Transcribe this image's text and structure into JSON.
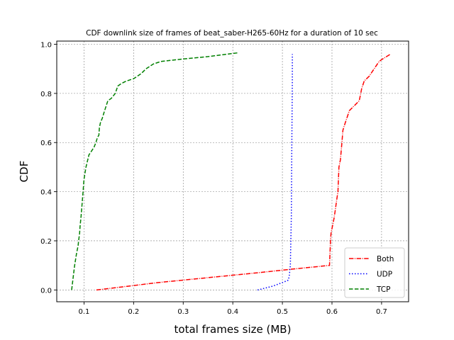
{
  "chart_data": {
    "type": "line",
    "title": "CDF downlink size of frames of beat_saber-H265-60Hz for a duration of 10 sec",
    "xlabel": "total frames size (MB)",
    "ylabel": "CDF",
    "xlim": [
      0.045,
      0.7545
    ],
    "ylim": [
      -0.048,
      1.013
    ],
    "xticks": [
      0.1,
      0.2,
      0.3,
      0.4,
      0.5,
      0.6,
      0.7
    ],
    "xtick_labels": [
      "0.1",
      "0.2",
      "0.3",
      "0.4",
      "0.5",
      "0.6",
      "0.7"
    ],
    "yticks": [
      0.0,
      0.2,
      0.4,
      0.6,
      0.8,
      1.0
    ],
    "ytick_labels": [
      "0.0",
      "0.2",
      "0.4",
      "0.6",
      "0.8",
      "1.0"
    ],
    "grid": true,
    "legend_position": "lower-right",
    "series": [
      {
        "name": "Both",
        "color": "#ff0000",
        "style": "dashdot",
        "x": [
          0.125,
          0.25,
          0.35,
          0.45,
          0.52,
          0.595,
          0.597,
          0.598,
          0.601,
          0.604,
          0.607,
          0.609,
          0.612,
          0.613,
          0.614,
          0.617,
          0.62,
          0.622,
          0.625,
          0.63,
          0.635,
          0.645,
          0.655,
          0.658,
          0.66,
          0.665,
          0.675,
          0.685,
          0.695,
          0.702,
          0.718
        ],
        "y": [
          0.0,
          0.03,
          0.05,
          0.07,
          0.085,
          0.1,
          0.2,
          0.23,
          0.26,
          0.29,
          0.33,
          0.36,
          0.4,
          0.45,
          0.5,
          0.53,
          0.6,
          0.65,
          0.67,
          0.7,
          0.73,
          0.75,
          0.77,
          0.8,
          0.82,
          0.85,
          0.87,
          0.9,
          0.93,
          0.94,
          0.96
        ]
      },
      {
        "name": "UDP",
        "color": "#0000ff",
        "style": "dotted",
        "x": [
          0.45,
          0.48,
          0.5,
          0.512,
          0.514,
          0.516,
          0.518,
          0.519,
          0.52,
          0.52
        ],
        "y": [
          0.0,
          0.015,
          0.03,
          0.04,
          0.06,
          0.1,
          0.3,
          0.6,
          0.85,
          0.96
        ]
      },
      {
        "name": "TCP",
        "color": "#008000",
        "style": "dashed",
        "x": [
          0.075,
          0.078,
          0.081,
          0.085,
          0.088,
          0.089,
          0.091,
          0.092,
          0.094,
          0.096,
          0.098,
          0.1,
          0.104,
          0.11,
          0.12,
          0.124,
          0.127,
          0.13,
          0.131,
          0.133,
          0.137,
          0.14,
          0.148,
          0.155,
          0.163,
          0.168,
          0.175,
          0.185,
          0.2,
          0.215,
          0.225,
          0.24,
          0.255,
          0.3,
          0.35,
          0.41
        ],
        "y": [
          0.0,
          0.05,
          0.1,
          0.15,
          0.18,
          0.2,
          0.23,
          0.26,
          0.3,
          0.35,
          0.4,
          0.45,
          0.5,
          0.55,
          0.58,
          0.6,
          0.62,
          0.63,
          0.66,
          0.68,
          0.7,
          0.72,
          0.77,
          0.78,
          0.8,
          0.83,
          0.84,
          0.85,
          0.86,
          0.88,
          0.9,
          0.92,
          0.93,
          0.94,
          0.95,
          0.965
        ]
      }
    ]
  }
}
